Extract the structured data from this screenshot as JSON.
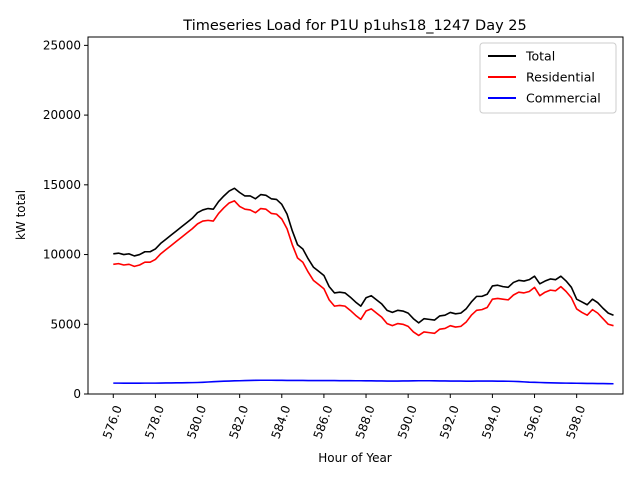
{
  "chart_data": {
    "type": "line",
    "title": "Timeseries Load for P1U p1uhs18_1247  Day 25",
    "xlabel": "Hour of Year",
    "ylabel": "kW total",
    "xlim": [
      574.8,
      600.2
    ],
    "ylim": [
      0,
      25600
    ],
    "x_ticks": [
      576,
      578,
      580,
      582,
      584,
      586,
      588,
      590,
      592,
      594,
      596,
      598
    ],
    "x_tick_labels": [
      "576.0",
      "578.0",
      "580.0",
      "582.0",
      "584.0",
      "586.0",
      "588.0",
      "590.0",
      "592.0",
      "594.0",
      "596.0",
      "598.0"
    ],
    "y_ticks": [
      0,
      5000,
      10000,
      15000,
      20000,
      25000
    ],
    "y_tick_labels": [
      "0",
      "5000",
      "10000",
      "15000",
      "20000",
      "25000"
    ],
    "legend_position": "top-right",
    "x": [
      576.0,
      576.25,
      576.5,
      576.75,
      577.0,
      577.25,
      577.5,
      577.75,
      578.0,
      578.25,
      578.5,
      578.75,
      579.0,
      579.25,
      579.5,
      579.75,
      580.0,
      580.25,
      580.5,
      580.75,
      581.0,
      581.25,
      581.5,
      581.75,
      582.0,
      582.25,
      582.5,
      582.75,
      583.0,
      583.25,
      583.5,
      583.75,
      584.0,
      584.25,
      584.5,
      584.75,
      585.0,
      585.25,
      585.5,
      585.75,
      586.0,
      586.25,
      586.5,
      586.75,
      587.0,
      587.25,
      587.5,
      587.75,
      588.0,
      588.25,
      588.5,
      588.75,
      589.0,
      589.25,
      589.5,
      589.75,
      590.0,
      590.25,
      590.5,
      590.75,
      591.0,
      591.25,
      591.5,
      591.75,
      592.0,
      592.25,
      592.5,
      592.75,
      593.0,
      593.25,
      593.5,
      593.75,
      594.0,
      594.25,
      594.5,
      594.75,
      595.0,
      595.25,
      595.5,
      595.75,
      596.0,
      596.25,
      596.5,
      596.75,
      597.0,
      597.25,
      597.5,
      597.75,
      598.0,
      598.25,
      598.5,
      598.75,
      599.0,
      599.25,
      599.5,
      599.75
    ],
    "series": [
      {
        "name": "Total",
        "color": "#000000",
        "values": [
          10050,
          10100,
          10000,
          10050,
          9900,
          10000,
          10200,
          10200,
          10400,
          10800,
          11100,
          11400,
          11700,
          12000,
          12300,
          12600,
          13000,
          13200,
          13300,
          13250,
          13800,
          14200,
          14550,
          14750,
          14450,
          14200,
          14200,
          14000,
          14300,
          14250,
          14000,
          13950,
          13600,
          12900,
          11700,
          10700,
          10400,
          9700,
          9100,
          8800,
          8500,
          7700,
          7250,
          7300,
          7250,
          6950,
          6600,
          6300,
          6900,
          7050,
          6750,
          6450,
          6000,
          5850,
          6000,
          5950,
          5800,
          5400,
          5100,
          5400,
          5350,
          5300,
          5600,
          5650,
          5850,
          5750,
          5800,
          6100,
          6600,
          7000,
          7000,
          7150,
          7750,
          7800,
          7700,
          7650,
          8000,
          8150,
          8100,
          8200,
          8450,
          7900,
          8100,
          8250,
          8200,
          8450,
          8100,
          7650,
          6800,
          6600,
          6400,
          6800,
          6550,
          6150,
          5800,
          5650
        ]
      },
      {
        "name": "Residential",
        "color": "#ff0000",
        "values": [
          9300,
          9350,
          9250,
          9300,
          9150,
          9250,
          9450,
          9450,
          9650,
          10050,
          10350,
          10650,
          10950,
          11250,
          11550,
          11850,
          12200,
          12400,
          12450,
          12400,
          12950,
          13350,
          13700,
          13850,
          13450,
          13250,
          13200,
          13000,
          13300,
          13250,
          12950,
          12900,
          12550,
          11850,
          10700,
          9750,
          9450,
          8750,
          8150,
          7850,
          7550,
          6750,
          6300,
          6350,
          6300,
          6000,
          5650,
          5350,
          5950,
          6100,
          5800,
          5500,
          5050,
          4900,
          5050,
          5000,
          4850,
          4450,
          4200,
          4450,
          4400,
          4350,
          4650,
          4700,
          4900,
          4800,
          4850,
          5150,
          5650,
          6000,
          6050,
          6200,
          6800,
          6850,
          6800,
          6750,
          7100,
          7300,
          7250,
          7350,
          7650,
          7050,
          7300,
          7450,
          7400,
          7700,
          7350,
          6900,
          6100,
          5850,
          5650,
          6050,
          5800,
          5400,
          5000,
          4900
        ]
      },
      {
        "name": "Commercial",
        "color": "#0000ff",
        "values": [
          780,
          780,
          775,
          775,
          775,
          775,
          780,
          780,
          780,
          785,
          790,
          795,
          800,
          805,
          810,
          815,
          825,
          840,
          860,
          880,
          900,
          920,
          930,
          945,
          950,
          960,
          970,
          980,
          985,
          985,
          985,
          980,
          980,
          975,
          975,
          970,
          970,
          965,
          965,
          960,
          960,
          960,
          960,
          955,
          955,
          955,
          950,
          950,
          945,
          945,
          940,
          935,
          930,
          930,
          930,
          935,
          940,
          945,
          950,
          950,
          950,
          945,
          940,
          935,
          930,
          925,
          925,
          920,
          920,
          925,
          925,
          925,
          925,
          920,
          920,
          915,
          905,
          890,
          870,
          850,
          840,
          825,
          810,
          800,
          790,
          785,
          780,
          775,
          770,
          765,
          760,
          755,
          750,
          745,
          740,
          735
        ]
      }
    ]
  }
}
